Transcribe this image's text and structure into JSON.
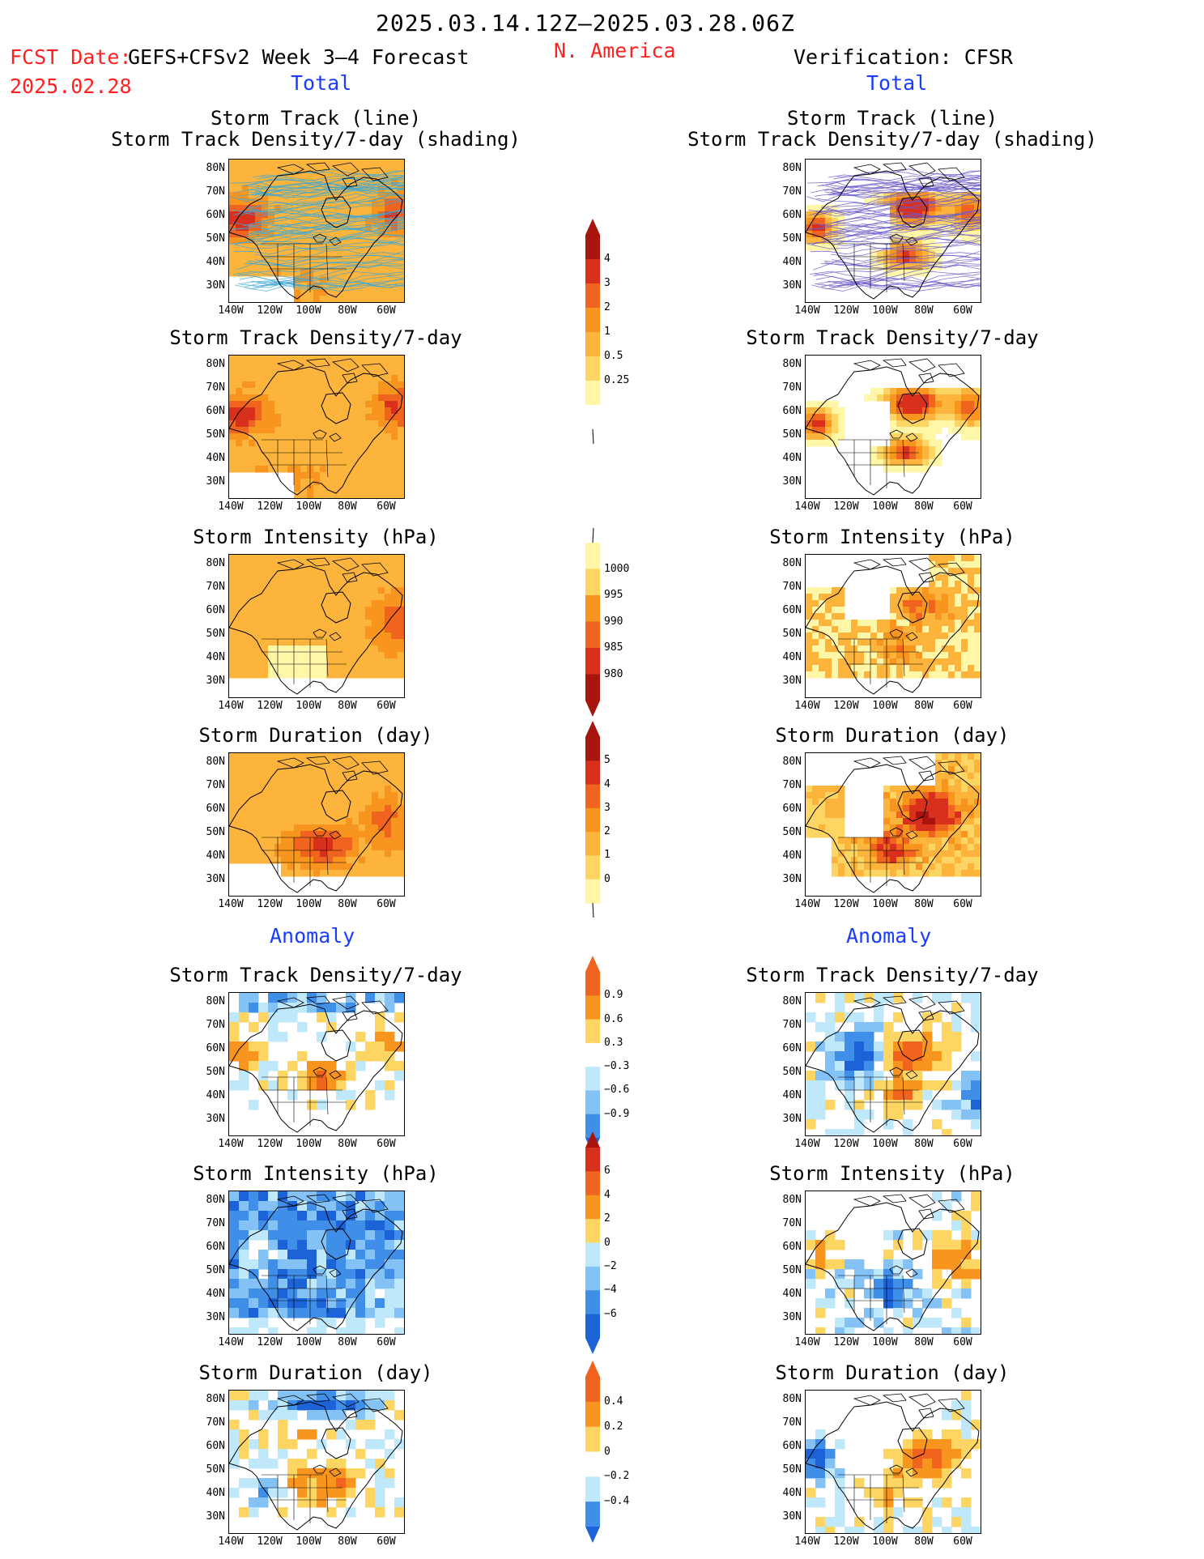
{
  "header": {
    "date_range": "2025.03.14.12Z–2025.03.28.06Z",
    "fcst_date_label": "FCST Date:",
    "fcst_date": "2025.02.28",
    "model": "GEFS+CFSv2 Week 3–4 Forecast",
    "region": "N. America",
    "verification": "Verification: CFSR",
    "left_section": "Total",
    "right_section": "Total",
    "left_anomaly": "Anomaly",
    "right_anomaly": "Anomaly"
  },
  "panel_titles": {
    "track_line": "Storm Track (line)",
    "track_shading": "Storm Track Density/7-day (shading)",
    "density": "Storm Track Density/7-day",
    "intensity": "Storm Intensity (hPa)",
    "duration": "Storm Duration (day)"
  },
  "axes": {
    "lat_ticks": [
      "80N",
      "70N",
      "60N",
      "50N",
      "40N",
      "30N"
    ],
    "lon_ticks": [
      "140W",
      "120W",
      "100W",
      "80W",
      "60W"
    ]
  },
  "colorbars": {
    "density_total": [
      "0.25",
      "0.5",
      "1",
      "2",
      "3",
      "4"
    ],
    "intensity_total": [
      "1000",
      "995",
      "990",
      "985",
      "980"
    ],
    "duration_total": [
      "0",
      "1",
      "2",
      "3",
      "4",
      "5"
    ],
    "density_anom": [
      "0.9",
      "0.6",
      "0.3",
      "−0.3",
      "−0.6",
      "−0.9"
    ],
    "intensity_anom": [
      "6",
      "4",
      "2",
      "0",
      "−2",
      "−4",
      "−6"
    ],
    "duration_anom": [
      "0.4",
      "0.2",
      "0",
      "−0.2",
      "−0.4"
    ]
  },
  "colors": {
    "pale_yellow": "#fff6a8",
    "yellow": "#fdd562",
    "orange_light": "#fcb43c",
    "orange": "#f7951f",
    "orange_red": "#f06420",
    "red": "#d9301e",
    "dark_red": "#a8140e",
    "light_blue": "#bfe9fb",
    "blue_light": "#84c1f4",
    "blue": "#3f8fe8",
    "blue_dark": "#1b63d6",
    "title_red": "#ff2020",
    "title_blue": "#1a3cff",
    "track_line": "#3aa8d8"
  }
}
